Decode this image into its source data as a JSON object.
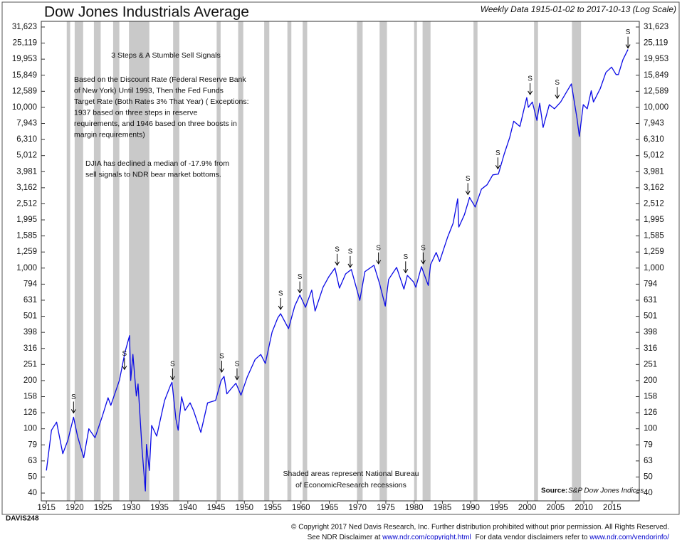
{
  "chart_data": {
    "type": "line",
    "title": "Dow Jones Industrials Average",
    "subtitle": "Weekly Data 1915-01-02 to 2017-10-13 (Log Scale)",
    "yscale": "log",
    "xlim": [
      1914.1,
      2019.8
    ],
    "ylim": [
      35.6,
      34300
    ],
    "xticks": [
      1915,
      1920,
      1925,
      1930,
      1935,
      1940,
      1945,
      1950,
      1955,
      1960,
      1965,
      1970,
      1975,
      1980,
      1985,
      1990,
      1995,
      2000,
      2005,
      2010,
      2015
    ],
    "yticks": [
      {
        "value": 39.81,
        "label": "40"
      },
      {
        "value": 50.12,
        "label": "50"
      },
      {
        "value": 63.1,
        "label": "63"
      },
      {
        "value": 79.43,
        "label": "79"
      },
      100,
      {
        "value": 125.9,
        "label": "126"
      },
      {
        "value": 158.5,
        "label": "158"
      },
      {
        "value": 199.5,
        "label": "200"
      },
      {
        "value": 251.2,
        "label": "251"
      },
      {
        "value": 316.2,
        "label": "316"
      },
      {
        "value": 398.1,
        "label": "398"
      },
      {
        "value": 501.2,
        "label": "501"
      },
      631,
      {
        "value": 794.3,
        "label": "794"
      },
      {
        "value": 1000,
        "label": "1,000"
      },
      {
        "value": 1259,
        "label": "1,259"
      },
      {
        "value": 1585,
        "label": "1,585"
      },
      {
        "value": 1995,
        "label": "1,995"
      },
      {
        "value": 2512,
        "label": "2,512"
      },
      {
        "value": 3162,
        "label": "3,162"
      },
      {
        "value": 3981,
        "label": "3,981"
      },
      {
        "value": 5012,
        "label": "5,012"
      },
      {
        "value": 6310,
        "label": "6,310"
      },
      {
        "value": 7943,
        "label": "7,943"
      },
      {
        "value": 10000,
        "label": "10,000"
      },
      {
        "value": 12589,
        "label": "12,589"
      },
      {
        "value": 15849,
        "label": "15,849"
      },
      {
        "value": 19953,
        "label": "19,953"
      },
      {
        "value": 25119,
        "label": "25,119"
      },
      {
        "value": 31623,
        "label": "31,623"
      }
    ],
    "x": [
      1915.0,
      1915.9,
      1916.8,
      1917.9,
      1918.8,
      1919.8,
      1920.5,
      1921.6,
      1922.5,
      1923.6,
      1924.9,
      1925.9,
      1926.4,
      1927.9,
      1928.9,
      1929.7,
      1929.9,
      1930.3,
      1930.9,
      1931.2,
      1931.9,
      1932.5,
      1932.7,
      1933.2,
      1933.6,
      1934.5,
      1935.9,
      1936.9,
      1937.2,
      1937.9,
      1938.3,
      1938.9,
      1939.5,
      1940.4,
      1941.0,
      1942.3,
      1943.5,
      1944.9,
      1945.9,
      1946.4,
      1946.9,
      1947.8,
      1948.5,
      1949.4,
      1950.5,
      1951.9,
      1952.9,
      1953.7,
      1954.9,
      1955.9,
      1956.4,
      1957.8,
      1958.9,
      1959.8,
      1960.8,
      1961.9,
      1962.5,
      1963.9,
      1964.9,
      1966.0,
      1966.8,
      1967.9,
      1968.9,
      1970.4,
      1971.3,
      1972.9,
      1973.9,
      1974.9,
      1975.5,
      1976.9,
      1978.2,
      1978.8,
      1979.9,
      1980.3,
      1981.3,
      1982.5,
      1982.9,
      1983.9,
      1984.5,
      1985.9,
      1986.9,
      1987.7,
      1987.9,
      1988.9,
      1989.8,
      1990.8,
      1991.9,
      1992.9,
      1993.9,
      1994.9,
      1995.9,
      1996.9,
      1997.6,
      1998.7,
      1999.9,
      2000.2,
      2000.9,
      2001.7,
      2002.2,
      2002.8,
      2003.9,
      2004.8,
      2005.9,
      2006.9,
      2007.8,
      2008.8,
      2009.2,
      2009.9,
      2010.6,
      2011.3,
      2011.7,
      2012.9,
      2013.9,
      2014.9,
      2015.7,
      2016.1,
      2016.9,
      2017.8
    ],
    "series": [
      {
        "color": "#0a0ae6",
        "values": [
          55,
          98,
          110,
          70,
          85,
          118,
          90,
          66,
          100,
          88,
          120,
          156,
          140,
          200,
          300,
          380,
          200,
          290,
          160,
          190,
          75,
          41,
          80,
          55,
          105,
          90,
          150,
          185,
          195,
          115,
          98,
          158,
          130,
          145,
          130,
          95,
          145,
          150,
          200,
          212,
          165,
          180,
          192,
          162,
          210,
          270,
          290,
          255,
          400,
          490,
          520,
          420,
          580,
          680,
          570,
          730,
          540,
          760,
          880,
          1000,
          750,
          920,
          980,
          630,
          950,
          1040,
          800,
          580,
          850,
          1010,
          740,
          900,
          820,
          760,
          1020,
          780,
          1050,
          1250,
          1100,
          1550,
          1900,
          2700,
          1800,
          2150,
          2750,
          2400,
          3100,
          3300,
          3800,
          3850,
          5100,
          6500,
          8200,
          7600,
          11500,
          10000,
          10800,
          8300,
          10600,
          7500,
          10400,
          9800,
          10800,
          12400,
          14000,
          8500,
          6600,
          10400,
          9800,
          12700,
          10800,
          13100,
          16500,
          17800,
          16000,
          16000,
          19800,
          22900
        ]
      }
    ],
    "recession_color": "#c9c9c9",
    "recessions": [
      [
        1918.6,
        1919.2
      ],
      [
        1920.0,
        1921.5
      ],
      [
        1923.4,
        1924.6
      ],
      [
        1926.8,
        1927.9
      ],
      [
        1929.6,
        1933.2
      ],
      [
        1937.4,
        1938.5
      ],
      [
        1945.1,
        1945.8
      ],
      [
        1948.9,
        1949.8
      ],
      [
        1953.5,
        1954.4
      ],
      [
        1957.6,
        1958.3
      ],
      [
        1960.3,
        1961.1
      ],
      [
        1969.9,
        1970.9
      ],
      [
        1973.9,
        1975.2
      ],
      [
        1980.0,
        1980.5
      ],
      [
        1981.5,
        1982.9
      ],
      [
        1990.5,
        1991.2
      ],
      [
        2001.2,
        2001.9
      ],
      [
        2007.9,
        2009.5
      ]
    ],
    "sell_signals": {
      "label": "S",
      "x": [
        1919.8,
        1928.8,
        1937.3,
        1946.0,
        1948.7,
        1956.4,
        1959.8,
        1966.4,
        1968.7,
        1973.7,
        1978.5,
        1981.6,
        1989.5,
        1994.8,
        2000.5,
        2005.3,
        2017.8
      ],
      "y": [
        118,
        220,
        190,
        212,
        190,
        520,
        660,
        980,
        950,
        1000,
        880,
        1000,
        2700,
        3900,
        11300,
        10700,
        22000
      ]
    },
    "annotations": {
      "heading": "3 Steps & A Stumble Sell Signals",
      "method": [
        "Based on the Discount Rate (Federal Reserve Bank",
        "of New York) Until 1993, Then the Fed Funds",
        "Target Rate (Both Rates 3% That Year) ( Exceptions:",
        "1937 based on three steps in reserve",
        "requirements, and 1946 based on three boosts in",
        "margin requirements)"
      ],
      "median": [
        "DJIA has declined a median of -17.9% from",
        "sell signals to NDR bear market bottoms."
      ],
      "shaded": [
        "Shaded areas represent National Bureau",
        "of EconomicResearch recessions"
      ]
    },
    "source_label": "Source:",
    "source": "S&P Dow Jones Indices"
  },
  "footer": {
    "code": "DAVIS248",
    "copyright": "© Copyright 2017 Ned Davis Research, Inc. Further distribution prohibited without prior permission. All Rights Reserved.",
    "disclaimer_prefix": "See NDR Disclaimer at ",
    "disclaimer_link": "www.ndr.com/copyright.html",
    "vendor_prefix": "For data vendor disclaimers refer to ",
    "vendor_link": "www.ndr.com/vendorinfo/"
  }
}
